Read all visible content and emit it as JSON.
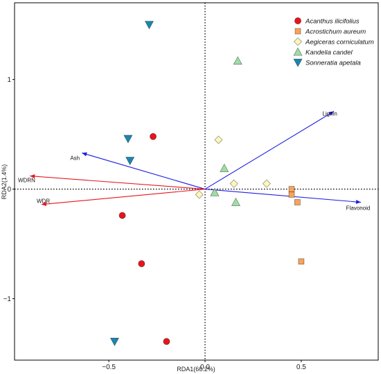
{
  "chart_data": {
    "type": "scatter",
    "xlabel": "RDA1(66.2%)",
    "ylabel": "RDA2(1.4%)",
    "xlim": [
      -0.99,
      0.9
    ],
    "ylim": [
      -1.56,
      1.7
    ],
    "x_ticks": [
      -0.5,
      0.0,
      0.5
    ],
    "x_tick_labels": [
      "−0.5",
      "0.0",
      "0.5"
    ],
    "y_ticks": [
      -1,
      0,
      1
    ],
    "y_tick_labels": [
      "−1",
      "0",
      "1"
    ],
    "grid": false,
    "reference_lines": [
      {
        "axis": "x",
        "value": 0,
        "style": "dotted"
      },
      {
        "axis": "y",
        "value": 0,
        "style": "dotted"
      }
    ],
    "legend_position": "top-right",
    "series": [
      {
        "name": "Acanthus ilicifolius",
        "marker": "circle",
        "color": "#e8141c",
        "points": [
          [
            -0.27,
            0.48
          ],
          [
            -0.43,
            -0.24
          ],
          [
            -0.33,
            -0.68
          ],
          [
            -0.2,
            -1.39
          ]
        ]
      },
      {
        "name": "Acrostichum aureum",
        "marker": "square",
        "color": "#f7a35c",
        "points": [
          [
            0.45,
            0.0
          ],
          [
            0.45,
            -0.05
          ],
          [
            0.48,
            -0.12
          ],
          [
            0.5,
            -0.66
          ]
        ]
      },
      {
        "name": "Aegiceras corniculatum",
        "marker": "diamond",
        "color": "#fff6b8",
        "points": [
          [
            0.07,
            0.45
          ],
          [
            -0.03,
            -0.05
          ],
          [
            0.15,
            0.05
          ],
          [
            0.32,
            0.05
          ]
        ]
      },
      {
        "name": "Kandelia candel",
        "marker": "triangle-up",
        "color": "#9fdda2",
        "points": [
          [
            0.17,
            1.17
          ],
          [
            0.1,
            0.19
          ],
          [
            0.05,
            -0.03
          ],
          [
            0.16,
            -0.12
          ]
        ]
      },
      {
        "name": "Sonneratia apetala",
        "marker": "triangle-down",
        "color": "#1a87b0",
        "points": [
          [
            -0.29,
            1.5
          ],
          [
            -0.4,
            0.46
          ],
          [
            -0.39,
            0.26
          ],
          [
            -0.47,
            -1.39
          ]
        ]
      }
    ],
    "vectors": [
      {
        "label": "Lignin",
        "x": 0.67,
        "y": 0.71,
        "color": "#1f1fe0"
      },
      {
        "label": "Ash",
        "x": -0.64,
        "y": 0.33,
        "color": "#1f1fe0"
      },
      {
        "label": "Flavonoid",
        "x": 0.81,
        "y": -0.12,
        "color": "#1f1fe0"
      },
      {
        "label": "WDRN",
        "x": -0.91,
        "y": 0.12,
        "color": "#e8141c"
      },
      {
        "label": "WDR",
        "x": -0.85,
        "y": -0.14,
        "color": "#e8141c"
      }
    ]
  }
}
